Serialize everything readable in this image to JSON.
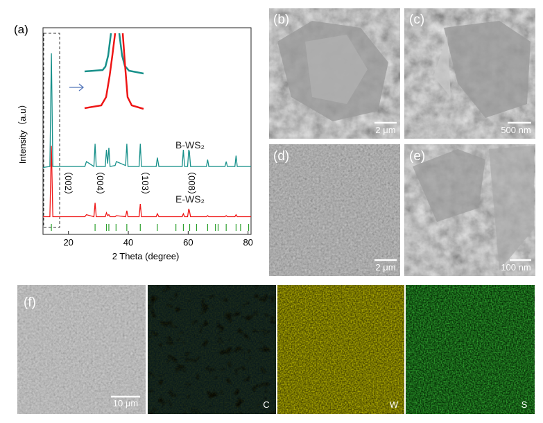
{
  "chart_data": {
    "type": "line",
    "label": "(a)",
    "x_label": "2 Theta (degree)",
    "y_label": "Intensity（a.u）",
    "xlim": [
      11.5,
      81
    ],
    "xticks": [
      20,
      40,
      60,
      80
    ],
    "ylim": [
      -5,
      100
    ],
    "x": [
      11.5,
      13.8,
      14.3,
      14.8,
      20,
      25.5,
      26,
      28.5,
      28.9,
      29.3,
      32.3,
      32.7,
      33.1,
      33.5,
      33.9,
      35.6,
      36,
      39.1,
      39.5,
      39.9,
      43.6,
      44,
      44.4,
      49.3,
      49.7,
      50.2,
      58,
      58.4,
      58.8,
      59.8,
      60.2,
      60.4,
      60.8,
      66.1,
      66.5,
      66.9,
      72.3,
      72.7,
      73.1,
      75.6,
      76,
      76.4,
      81
    ],
    "series": [
      {
        "name": "B-WS₂",
        "color": "#17908a",
        "values": [
          29,
          29.5,
          87,
          29.5,
          29.5,
          29.5,
          32,
          29.5,
          41,
          29.5,
          29.5,
          38,
          31,
          39,
          29.5,
          30,
          32,
          30,
          41,
          29.5,
          29.5,
          41,
          29.5,
          29.5,
          34,
          29.5,
          29.5,
          38,
          29.5,
          29.5,
          38,
          37,
          29.5,
          29.5,
          33,
          29.5,
          29.5,
          32,
          29.5,
          29.5,
          35,
          29.5,
          29.5
        ]
      },
      {
        "name": "E-WS₂",
        "color": "#ee1515",
        "values": [
          4,
          4,
          40,
          4,
          4,
          4,
          5,
          4,
          11,
          4,
          4,
          6,
          4.5,
          5,
          4,
          4,
          4.5,
          4,
          7,
          4,
          4,
          10.5,
          4,
          4,
          5.5,
          4,
          4,
          5.5,
          4,
          4,
          8,
          7,
          4,
          4,
          4.5,
          4,
          4,
          4.5,
          4,
          4,
          5,
          4,
          4
        ]
      }
    ],
    "reference_peaks": [
      14.3,
      28.9,
      32.7,
      33.5,
      35.9,
      39.5,
      44.0,
      49.7,
      55.9,
      58.4,
      60.5,
      62.8,
      66.5,
      69.1,
      70.0,
      72.7,
      76.0,
      77.5,
      80.2
    ],
    "reference_color": "#2ca02c",
    "annotations": [
      "（002）",
      "（004）",
      "（103）",
      "（008）"
    ]
  },
  "images": [
    {
      "label": "(b)",
      "scale_bar": "2 μm"
    },
    {
      "label": "(c)",
      "scale_bar": "500 nm"
    },
    {
      "label": "(d)",
      "scale_bar": "2 μm"
    },
    {
      "label": "(e)",
      "scale_bar": "100 nm"
    }
  ],
  "eds_maps": {
    "label": "(f)",
    "scale_bar": "10 μm",
    "elements": [
      "C",
      "W",
      "S"
    ]
  }
}
